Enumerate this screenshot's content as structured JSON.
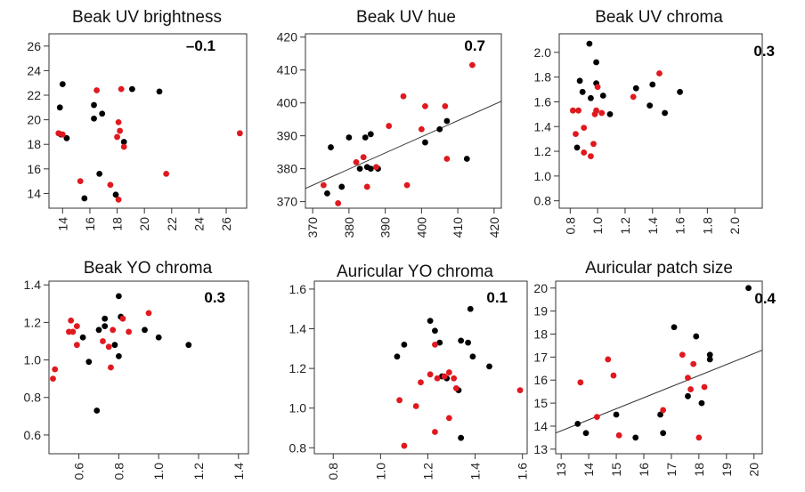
{
  "colors": {
    "black_points": "#000000",
    "red_points": "#e0191e",
    "axis": "#333333",
    "fit_line": "#333333"
  },
  "chart_data": [
    {
      "type": "scatter",
      "title": "Beak UV brightness",
      "annotation": "–0.1",
      "xlim": [
        13,
        27.5
      ],
      "ylim": [
        12.8,
        27
      ],
      "xticks": [
        "14",
        "16",
        "18",
        "20",
        "22",
        "24",
        "26"
      ],
      "yticks": [
        "14",
        "16",
        "18",
        "20",
        "22",
        "24",
        "26"
      ],
      "fit_line": null,
      "series": [
        {
          "color": "black",
          "points": [
            [
              14.0,
              22.9
            ],
            [
              13.8,
              21.0
            ],
            [
              14.3,
              18.5
            ],
            [
              13.9,
              18.8
            ],
            [
              16.3,
              21.2
            ],
            [
              16.3,
              20.1
            ],
            [
              16.9,
              20.5
            ],
            [
              16.7,
              15.6
            ],
            [
              15.6,
              13.6
            ],
            [
              17.9,
              13.9
            ],
            [
              18.5,
              18.2
            ],
            [
              19.1,
              22.5
            ],
            [
              21.1,
              22.3
            ]
          ]
        },
        {
          "color": "red",
          "points": [
            [
              13.7,
              18.9
            ],
            [
              14.0,
              18.8
            ],
            [
              16.5,
              22.4
            ],
            [
              18.3,
              22.5
            ],
            [
              18.1,
              19.8
            ],
            [
              18.2,
              19.1
            ],
            [
              18.0,
              18.6
            ],
            [
              18.5,
              17.8
            ],
            [
              15.3,
              15.0
            ],
            [
              17.5,
              14.7
            ],
            [
              18.1,
              13.5
            ],
            [
              21.6,
              15.6
            ],
            [
              27.0,
              18.9
            ]
          ]
        }
      ]
    },
    {
      "type": "scatter",
      "title": "Beak UV hue",
      "annotation": "0.7",
      "xlim": [
        368,
        422
      ],
      "ylim": [
        368,
        421
      ],
      "xticks": [
        "370",
        "380",
        "390",
        "400",
        "410",
        "420"
      ],
      "yticks": [
        "370",
        "380",
        "390",
        "400",
        "410",
        "420"
      ],
      "fit_line": {
        "x": [
          368,
          422
        ],
        "y": [
          374,
          400.5
        ]
      },
      "series": [
        {
          "color": "black",
          "points": [
            [
              374,
              372.5
            ],
            [
              375,
              386.5
            ],
            [
              378,
              374.5
            ],
            [
              380,
              389.5
            ],
            [
              383,
              380
            ],
            [
              384.5,
              389.5
            ],
            [
              385,
              380.5
            ],
            [
              386,
              380
            ],
            [
              386,
              390.5
            ],
            [
              388,
              380
            ],
            [
              401,
              388
            ],
            [
              405,
              392
            ],
            [
              407,
              394.5
            ],
            [
              412.5,
              383
            ]
          ]
        },
        {
          "color": "red",
          "points": [
            [
              373,
              375
            ],
            [
              377,
              369.5
            ],
            [
              382,
              382
            ],
            [
              384,
              383.5
            ],
            [
              385,
              374.5
            ],
            [
              387.5,
              380.5
            ],
            [
              391,
              393
            ],
            [
              395,
              402
            ],
            [
              396,
              375
            ],
            [
              400,
              392
            ],
            [
              401,
              399
            ],
            [
              406.5,
              399
            ],
            [
              407,
              383
            ],
            [
              414,
              411.5
            ]
          ]
        }
      ]
    },
    {
      "type": "scatter",
      "title": "Beak UV chroma",
      "annotation": "0.3",
      "xlim": [
        0.72,
        2.2
      ],
      "ylim": [
        0.74,
        2.15
      ],
      "xticks": [
        "0.8",
        "1.0",
        "1.2",
        "1.4",
        "1.6",
        "1.8",
        "2.0"
      ],
      "yticks": [
        "0.8",
        "1.0",
        "1.2",
        "1.4",
        "1.6",
        "1.8",
        "2.0"
      ],
      "fit_line": null,
      "series": [
        {
          "color": "black",
          "points": [
            [
              0.87,
              1.77
            ],
            [
              0.85,
              1.23
            ],
            [
              0.89,
              1.68
            ],
            [
              0.95,
              1.63
            ],
            [
              0.94,
              2.07
            ],
            [
              0.99,
              1.92
            ],
            [
              0.99,
              1.75
            ],
            [
              1.04,
              1.65
            ],
            [
              1.09,
              1.5
            ],
            [
              1.28,
              1.71
            ],
            [
              1.38,
              1.57
            ],
            [
              1.4,
              1.74
            ],
            [
              1.49,
              1.51
            ],
            [
              1.6,
              1.68
            ]
          ]
        },
        {
          "color": "red",
          "points": [
            [
              0.82,
              1.53
            ],
            [
              0.86,
              1.53
            ],
            [
              0.84,
              1.34
            ],
            [
              0.9,
              1.39
            ],
            [
              0.9,
              1.19
            ],
            [
              0.95,
              1.16
            ],
            [
              0.97,
              1.26
            ],
            [
              0.98,
              1.5
            ],
            [
              0.99,
              1.53
            ],
            [
              1.0,
              1.72
            ],
            [
              1.03,
              1.51
            ],
            [
              1.26,
              1.64
            ],
            [
              1.45,
              1.83
            ]
          ]
        }
      ]
    },
    {
      "type": "scatter",
      "title": "Beak YO chroma",
      "annotation": "0.3",
      "xlim": [
        0.45,
        1.45
      ],
      "ylim": [
        0.5,
        1.42
      ],
      "xticks": [
        "0.6",
        "0.8",
        "1.0",
        "1.2",
        "1.4"
      ],
      "yticks": [
        "0.6",
        "0.8",
        "1.0",
        "1.2",
        "1.4"
      ],
      "fit_line": null,
      "series": [
        {
          "color": "black",
          "points": [
            [
              0.62,
              1.12
            ],
            [
              0.65,
              0.99
            ],
            [
              0.69,
              0.73
            ],
            [
              0.7,
              1.16
            ],
            [
              0.73,
              1.22
            ],
            [
              0.73,
              1.18
            ],
            [
              0.78,
              1.08
            ],
            [
              0.8,
              1.02
            ],
            [
              0.8,
              1.34
            ],
            [
              0.81,
              1.23
            ],
            [
              0.93,
              1.16
            ],
            [
              1.0,
              1.12
            ],
            [
              1.15,
              1.08
            ]
          ]
        },
        {
          "color": "red",
          "points": [
            [
              0.47,
              0.9
            ],
            [
              0.48,
              0.95
            ],
            [
              0.55,
              1.15
            ],
            [
              0.56,
              1.21
            ],
            [
              0.57,
              1.15
            ],
            [
              0.59,
              1.18
            ],
            [
              0.59,
              1.08
            ],
            [
              0.72,
              1.1
            ],
            [
              0.75,
              1.07
            ],
            [
              0.76,
              0.96
            ],
            [
              0.77,
              1.16
            ],
            [
              0.82,
              1.22
            ],
            [
              0.85,
              1.15
            ],
            [
              0.95,
              1.25
            ]
          ]
        }
      ]
    },
    {
      "type": "scatter",
      "title": "Auricular YO chroma",
      "annotation": "0.1",
      "xlim": [
        0.72,
        1.62
      ],
      "ylim": [
        0.77,
        1.64
      ],
      "xticks": [
        "0.8",
        "1.0",
        "1.2",
        "1.4",
        "1.6"
      ],
      "yticks": [
        "0.8",
        "1.0",
        "1.2",
        "1.4",
        "1.6"
      ],
      "fit_line": null,
      "series": [
        {
          "color": "black",
          "points": [
            [
              1.07,
              1.26
            ],
            [
              1.1,
              1.32
            ],
            [
              1.21,
              1.44
            ],
            [
              1.23,
              1.39
            ],
            [
              1.25,
              1.33
            ],
            [
              1.26,
              1.16
            ],
            [
              1.28,
              1.15
            ],
            [
              1.33,
              1.09
            ],
            [
              1.34,
              1.34
            ],
            [
              1.34,
              0.85
            ],
            [
              1.37,
              1.33
            ],
            [
              1.38,
              1.5
            ],
            [
              1.39,
              1.26
            ],
            [
              1.46,
              1.21
            ]
          ]
        },
        {
          "color": "red",
          "points": [
            [
              1.08,
              1.04
            ],
            [
              1.1,
              0.81
            ],
            [
              1.15,
              1.01
            ],
            [
              1.17,
              1.13
            ],
            [
              1.21,
              1.17
            ],
            [
              1.23,
              1.32
            ],
            [
              1.23,
              0.88
            ],
            [
              1.24,
              1.15
            ],
            [
              1.27,
              1.16
            ],
            [
              1.29,
              1.18
            ],
            [
              1.29,
              0.95
            ],
            [
              1.31,
              1.15
            ],
            [
              1.32,
              1.1
            ],
            [
              1.59,
              1.09
            ]
          ]
        }
      ]
    },
    {
      "type": "scatter",
      "title": "Auricular patch size",
      "annotation": "0.4",
      "xlim": [
        12.8,
        20.3
      ],
      "ylim": [
        12.8,
        20.3
      ],
      "xticks": [
        "13",
        "14",
        "15",
        "16",
        "17",
        "18",
        "19",
        "20"
      ],
      "yticks": [
        "13",
        "14",
        "15",
        "16",
        "17",
        "18",
        "19",
        "20"
      ],
      "fit_line": {
        "x": [
          12.8,
          20.3
        ],
        "y": [
          13.7,
          17.3
        ]
      },
      "series": [
        {
          "color": "black",
          "points": [
            [
              13.6,
              14.1
            ],
            [
              13.9,
              13.7
            ],
            [
              15.0,
              14.5
            ],
            [
              15.7,
              13.5
            ],
            [
              16.6,
              14.5
            ],
            [
              16.7,
              13.7
            ],
            [
              17.1,
              18.3
            ],
            [
              17.6,
              15.3
            ],
            [
              17.9,
              17.9
            ],
            [
              18.1,
              15.0
            ],
            [
              18.4,
              16.9
            ],
            [
              18.4,
              17.1
            ],
            [
              19.8,
              20.0
            ]
          ]
        },
        {
          "color": "red",
          "points": [
            [
              13.7,
              15.9
            ],
            [
              14.3,
              14.4
            ],
            [
              14.7,
              16.9
            ],
            [
              14.9,
              16.2
            ],
            [
              15.1,
              13.6
            ],
            [
              16.7,
              14.7
            ],
            [
              17.4,
              17.1
            ],
            [
              17.6,
              16.1
            ],
            [
              17.7,
              15.6
            ],
            [
              17.8,
              16.7
            ],
            [
              18.0,
              13.5
            ],
            [
              18.2,
              15.7
            ]
          ]
        }
      ]
    }
  ]
}
